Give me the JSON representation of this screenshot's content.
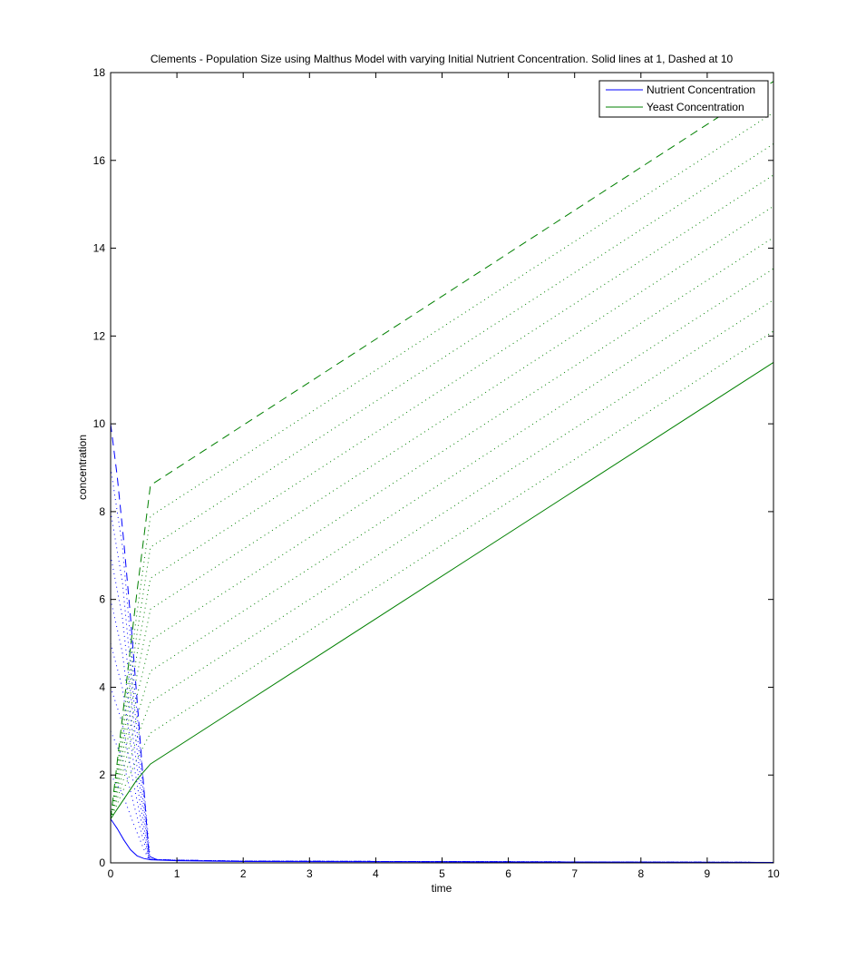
{
  "chart_data": {
    "type": "line",
    "title": "Clements - Population Size using Malthus Model with varying Initial Nutrient Concentration. Solid lines at 1, Dashed at 10",
    "xlabel": "time",
    "ylabel": "concentration",
    "xlim": [
      0,
      10
    ],
    "ylim": [
      0,
      18
    ],
    "xticks": [
      "0",
      "1",
      "2",
      "3",
      "4",
      "5",
      "6",
      "7",
      "8",
      "9",
      "10"
    ],
    "yticks": [
      "0",
      "2",
      "4",
      "6",
      "8",
      "10",
      "12",
      "14",
      "16",
      "18"
    ],
    "grid": false,
    "legend_position": "top-right",
    "legend": [
      {
        "label": "Nutrient Concentration",
        "color": "#0000ff"
      },
      {
        "label": "Yeast Concentration",
        "color": "#008000"
      }
    ],
    "colors": {
      "nutrient": "#0000ff",
      "yeast": "#008000"
    },
    "initial_nutrient": [
      1,
      2,
      3,
      4,
      5,
      6,
      7,
      8,
      9,
      10
    ],
    "series": [
      {
        "group": "nutrient",
        "style": "solid",
        "initial": 1,
        "x": [
          0,
          0.1,
          0.2,
          0.3,
          0.4,
          0.5,
          0.6,
          1,
          2,
          10
        ],
        "y": [
          1,
          0.78,
          0.52,
          0.3,
          0.16,
          0.1,
          0.07,
          0.05,
          0.03,
          0.01
        ]
      },
      {
        "group": "nutrient",
        "style": "dashed",
        "initial": 10,
        "x": [
          0,
          0.1,
          0.2,
          0.3,
          0.4,
          0.5,
          0.58,
          0.7,
          1,
          2,
          10
        ],
        "y": [
          10,
          8.8,
          7.3,
          5.6,
          3.7,
          1.7,
          0.15,
          0.07,
          0.06,
          0.04,
          0.01
        ]
      },
      {
        "group": "yeast",
        "style": "solid",
        "initial": 1,
        "x": [
          0,
          0.2,
          0.4,
          0.6,
          10
        ],
        "y": [
          1,
          1.45,
          1.9,
          2.25,
          11.4
        ]
      },
      {
        "group": "yeast",
        "style": "dashed",
        "initial": 10,
        "x": [
          0,
          0.2,
          0.4,
          0.6,
          10
        ],
        "y": [
          1,
          3.6,
          6.2,
          8.6,
          17.8
        ]
      }
    ],
    "dotted_series_note": "Dotted lines for initial nutrient 2 through 9"
  }
}
